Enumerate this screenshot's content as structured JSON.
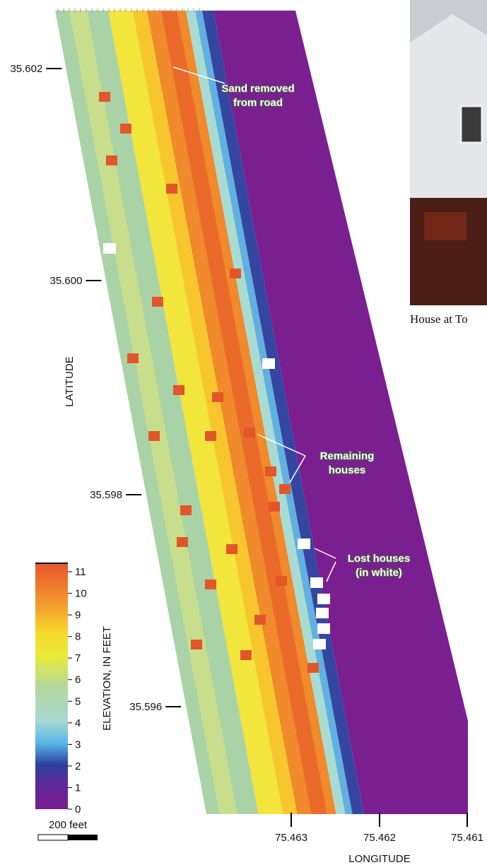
{
  "map": {
    "y_axis_label": "LATITUDE",
    "x_axis_label": "LONGITUDE",
    "latitude_ticks": [
      "35.602",
      "35.600",
      "35.598",
      "35.596"
    ],
    "longitude_ticks": [
      "75.463",
      "75.462",
      "75.461"
    ],
    "annotations": [
      {
        "lines": [
          "Sand removed",
          "from road"
        ]
      },
      {
        "lines": [
          "Remaining",
          "houses"
        ]
      },
      {
        "lines": [
          "Lost houses",
          "(in white)"
        ]
      }
    ],
    "colorbar": {
      "label": "ELEVATION, IN FEET",
      "ticks": [
        0,
        1,
        2,
        3,
        4,
        5,
        6,
        7,
        8,
        9,
        10,
        11
      ]
    },
    "scale_bar": "200 feet",
    "photo_caption": "House at To"
  }
}
